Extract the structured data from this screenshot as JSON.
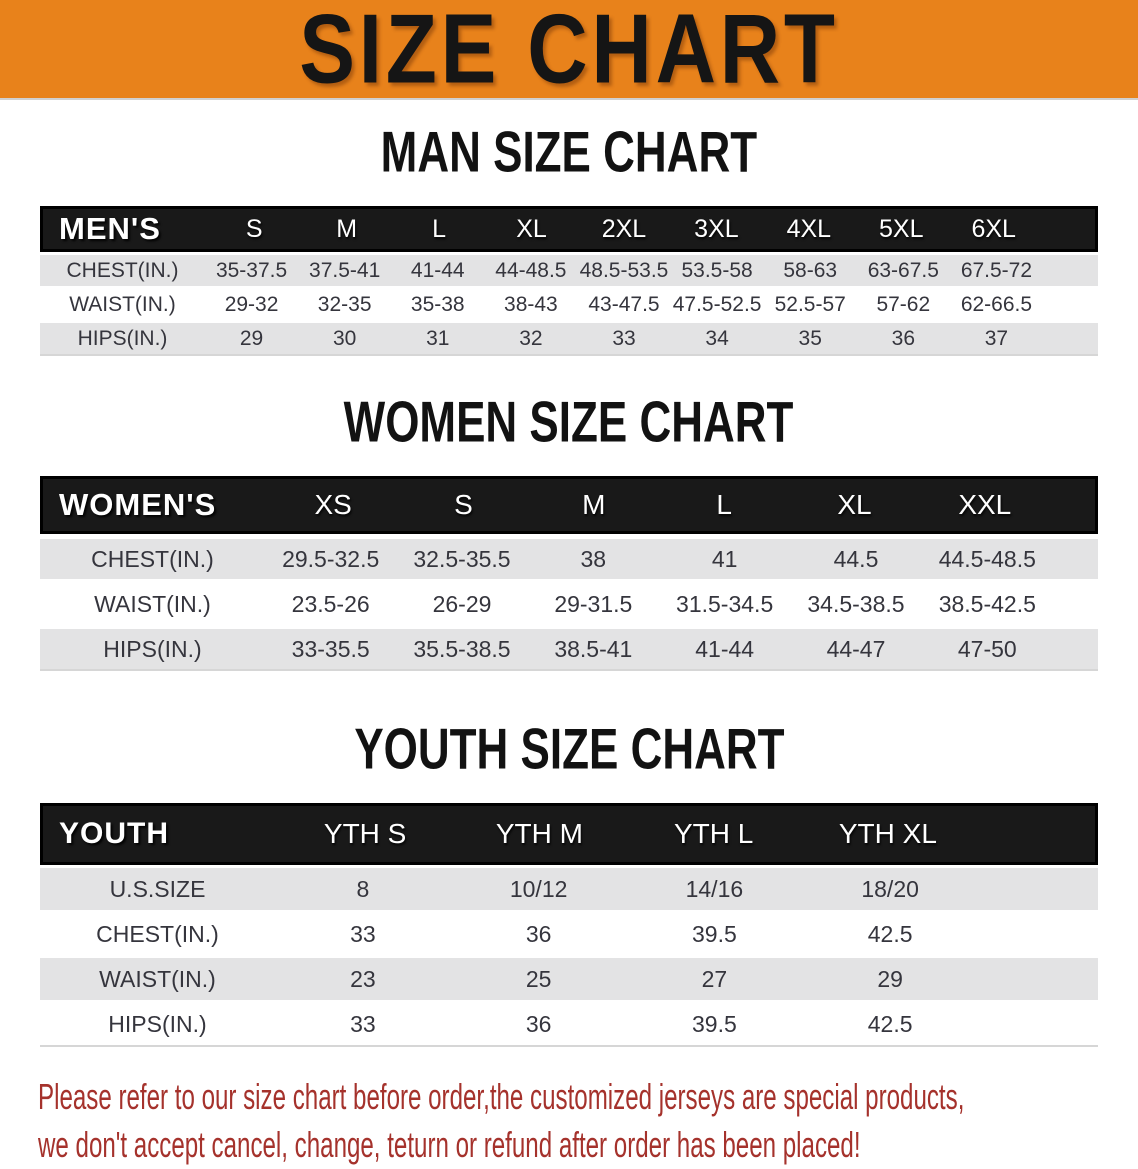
{
  "banner": {
    "title": "SIZE CHART"
  },
  "colors": {
    "banner_bg": "#E8821B",
    "banner_text": "#151515",
    "table_header_bg": "#191919",
    "table_header_text": "#FFFFFF",
    "row_stripe_gray": "#E3E3E4",
    "row_white": "#FFFFFF",
    "cell_text": "#35353D",
    "disclaimer_red": "#A5322C"
  },
  "sections": [
    {
      "heading": "MAN SIZE CHART"
    },
    {
      "heading": "WOMEN SIZE CHART"
    },
    {
      "heading": "YOUTH SIZE CHART"
    }
  ],
  "chart_data": [
    {
      "type": "table",
      "title": "MAN SIZE CHART",
      "header_label": "MEN'S",
      "columns": [
        "S",
        "M",
        "L",
        "XL",
        "2XL",
        "3XL",
        "4XL",
        "5XL",
        "6XL"
      ],
      "rows": [
        {
          "label": "CHEST(IN.)",
          "values": [
            "35-37.5",
            "37.5-41",
            "41-44",
            "44-48.5",
            "48.5-53.5",
            "53.5-58",
            "58-63",
            "63-67.5",
            "67.5-72"
          ]
        },
        {
          "label": "WAIST(IN.)",
          "values": [
            "29-32",
            "32-35",
            "35-38",
            "38-43",
            "43-47.5",
            "47.5-52.5",
            "52.5-57",
            "57-62",
            "62-66.5"
          ]
        },
        {
          "label": "HIPS(IN.)",
          "values": [
            "29",
            "30",
            "31",
            "32",
            "33",
            "34",
            "35",
            "36",
            "37"
          ]
        }
      ]
    },
    {
      "type": "table",
      "title": "WOMEN SIZE CHART",
      "header_label": "WOMEN'S",
      "columns": [
        "XS",
        "S",
        "M",
        "L",
        "XL",
        "XXL"
      ],
      "rows": [
        {
          "label": "CHEST(IN.)",
          "values": [
            "29.5-32.5",
            "32.5-35.5",
            "38",
            "41",
            "44.5",
            "44.5-48.5"
          ]
        },
        {
          "label": "WAIST(IN.)",
          "values": [
            "23.5-26",
            "26-29",
            "29-31.5",
            "31.5-34.5",
            "34.5-38.5",
            "38.5-42.5"
          ]
        },
        {
          "label": "HIPS(IN.)",
          "values": [
            "33-35.5",
            "35.5-38.5",
            "38.5-41",
            "41-44",
            "44-47",
            "47-50"
          ]
        }
      ]
    },
    {
      "type": "table",
      "title": "YOUTH SIZE CHART",
      "header_label": "YOUTH",
      "columns": [
        "YTH S",
        "YTH M",
        "YTH L",
        "YTH XL"
      ],
      "rows": [
        {
          "label": "U.S.SIZE",
          "values": [
            "8",
            "10/12",
            "14/16",
            "18/20"
          ]
        },
        {
          "label": "CHEST(IN.)",
          "values": [
            "33",
            "36",
            "39.5",
            "42.5"
          ]
        },
        {
          "label": "WAIST(IN.)",
          "values": [
            "23",
            "25",
            "27",
            "29"
          ]
        },
        {
          "label": "HIPS(IN.)",
          "values": [
            "33",
            "36",
            "39.5",
            "42.5"
          ]
        }
      ]
    }
  ],
  "footer_note": {
    "line1": "Please refer to our size chart before order,the customized jerseys are special products,",
    "line2": "we don't accept cancel, change, teturn or refund after order has been placed!"
  }
}
